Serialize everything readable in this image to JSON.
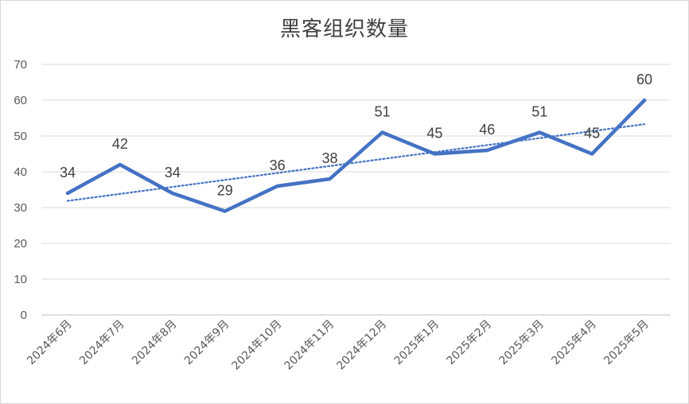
{
  "chart_data": {
    "type": "line",
    "title": "黑客组织数量",
    "xlabel": "",
    "ylabel": "",
    "categories": [
      "2024年6月",
      "2024年7月",
      "2024年8月",
      "2024年9月",
      "2024年10月",
      "2024年11月",
      "2024年12月",
      "2025年1月",
      "2025年2月",
      "2025年3月",
      "2025年4月",
      "2025年5月"
    ],
    "series": [
      {
        "values": [
          34,
          42,
          34,
          29,
          36,
          38,
          51,
          45,
          46,
          51,
          45,
          60
        ],
        "color": "#4472C4"
      }
    ],
    "trendline": {
      "type": "linear",
      "style": "dotted",
      "color": "#4472C4"
    },
    "ylim": [
      0,
      70
    ],
    "yticks": [
      0,
      10,
      20,
      30,
      40,
      50,
      60,
      70
    ],
    "grid": true,
    "legend": "none",
    "data_labels": true
  }
}
